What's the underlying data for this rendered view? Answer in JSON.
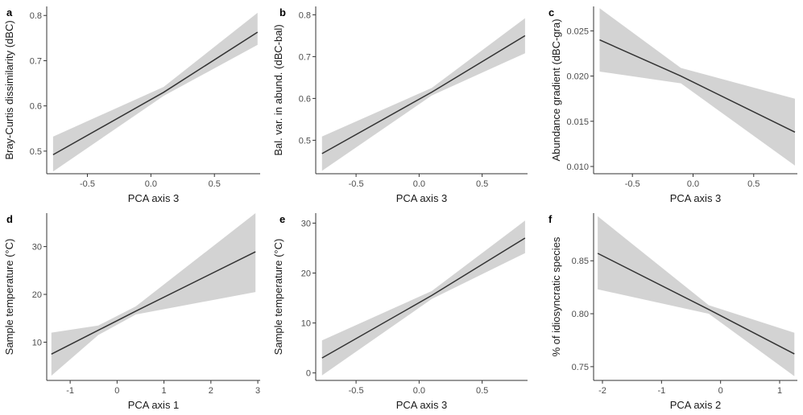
{
  "chart_data": [
    {
      "panel_label": "a",
      "type": "line",
      "xlabel": "PCA axis 3",
      "ylabel": "Bray-Curtis dissimilarity (dBC)",
      "xlim": [
        -0.82,
        0.86
      ],
      "ylim": [
        0.45,
        0.82
      ],
      "xticks": [
        -0.5,
        0.0,
        0.5
      ],
      "xtick_labels": [
        "-0.5",
        "0.0",
        "0.5"
      ],
      "yticks": [
        0.5,
        0.6,
        0.7,
        0.8
      ],
      "ytick_labels": [
        "0.5",
        "0.6",
        "0.7",
        "0.8"
      ],
      "x": [
        -0.77,
        0.1,
        0.84
      ],
      "fit": [
        0.492,
        0.63,
        0.763
      ],
      "lower": [
        0.455,
        0.622,
        0.735
      ],
      "upper": [
        0.532,
        0.642,
        0.806
      ]
    },
    {
      "panel_label": "b",
      "type": "line",
      "xlabel": "PCA axis 3",
      "ylabel": "Bal. var. in abund. (dBC-bal)",
      "xlim": [
        -0.82,
        0.86
      ],
      "ylim": [
        0.42,
        0.82
      ],
      "xticks": [
        -0.5,
        0.0,
        0.5
      ],
      "xtick_labels": [
        "-0.5",
        "0.0",
        "0.5"
      ],
      "yticks": [
        0.5,
        0.6,
        0.7,
        0.8
      ],
      "ytick_labels": [
        "0.5",
        "0.6",
        "0.7",
        "0.8"
      ],
      "x": [
        -0.77,
        0.1,
        0.84
      ],
      "fit": [
        0.468,
        0.615,
        0.75
      ],
      "lower": [
        0.427,
        0.607,
        0.708
      ],
      "upper": [
        0.509,
        0.625,
        0.792
      ]
    },
    {
      "panel_label": "c",
      "type": "line",
      "xlabel": "PCA axis 3",
      "ylabel": "Abundance gradient (dBC-gra)",
      "xlim": [
        -0.82,
        0.86
      ],
      "ylim": [
        0.0092,
        0.0277
      ],
      "xticks": [
        -0.5,
        0.0,
        0.5
      ],
      "xtick_labels": [
        "-0.5",
        "0.0",
        "0.5"
      ],
      "yticks": [
        0.01,
        0.015,
        0.02,
        0.025
      ],
      "ytick_labels": [
        "0.010",
        "0.015",
        "0.020",
        "0.025"
      ],
      "x": [
        -0.77,
        -0.1,
        0.84
      ],
      "fit": [
        0.024,
        0.02,
        0.0138
      ],
      "lower": [
        0.0205,
        0.0192,
        0.0101
      ],
      "upper": [
        0.0275,
        0.0209,
        0.0175
      ]
    },
    {
      "panel_label": "d",
      "type": "line",
      "xlabel": "PCA axis 1",
      "ylabel": "Sample temperature (°C)",
      "xlim": [
        -1.5,
        3.05
      ],
      "ylim": [
        2,
        37
      ],
      "xticks": [
        -1,
        0,
        1,
        2,
        3
      ],
      "xtick_labels": [
        "-1",
        "0",
        "1",
        "2",
        "3"
      ],
      "yticks": [
        10,
        20,
        30
      ],
      "ytick_labels": [
        "10",
        "20",
        "30"
      ],
      "x": [
        -1.4,
        -0.4,
        0.4,
        2.95
      ],
      "fit": [
        7.5,
        12.5,
        16.5,
        28.9
      ],
      "lower": [
        3.0,
        11.5,
        15.8,
        20.5
      ],
      "upper": [
        12.0,
        13.5,
        17.5,
        37.0
      ]
    },
    {
      "panel_label": "e",
      "type": "line",
      "xlabel": "PCA axis 3",
      "ylabel": "Sample temperature (°C)",
      "xlim": [
        -0.82,
        0.86
      ],
      "ylim": [
        -1.5,
        32
      ],
      "xticks": [
        -0.5,
        0.0,
        0.5
      ],
      "xtick_labels": [
        "-0.5",
        "0.0",
        "0.5"
      ],
      "yticks": [
        0,
        10,
        20,
        30
      ],
      "ytick_labels": [
        "0",
        "10",
        "20",
        "30"
      ],
      "x": [
        -0.77,
        0.1,
        0.84
      ],
      "fit": [
        3.0,
        15.5,
        27.0
      ],
      "lower": [
        -0.5,
        14.8,
        24.0
      ],
      "upper": [
        6.5,
        16.4,
        30.5
      ]
    },
    {
      "panel_label": "f",
      "type": "line",
      "xlabel": "PCA axis 2",
      "ylabel": "% of idiosyncratic species",
      "xlim": [
        -2.15,
        1.3
      ],
      "ylim": [
        0.737,
        0.895
      ],
      "xticks": [
        -2,
        -1,
        0,
        1
      ],
      "xtick_labels": [
        "-2",
        "-1",
        "0",
        "1"
      ],
      "yticks": [
        0.75,
        0.8,
        0.85
      ],
      "ytick_labels": [
        "0.75",
        "0.80",
        "0.85"
      ],
      "x": [
        -2.08,
        -0.2,
        1.25
      ],
      "fit": [
        0.857,
        0.804,
        0.762
      ],
      "lower": [
        0.823,
        0.8,
        0.741
      ],
      "upper": [
        0.892,
        0.808,
        0.782
      ]
    }
  ],
  "colors": {
    "band": "#d3d3d3",
    "line": "#333333",
    "axis": "#333333"
  }
}
